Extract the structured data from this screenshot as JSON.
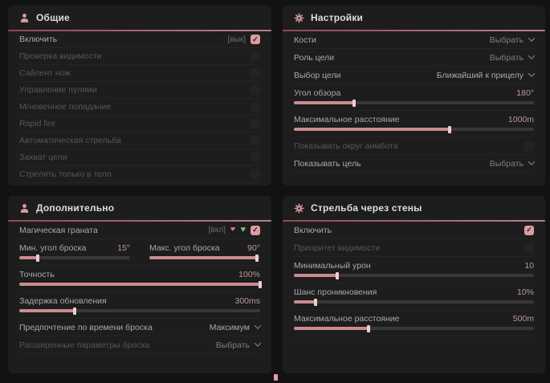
{
  "icons": {
    "check": "✓",
    "heart": "♥"
  },
  "colors": {
    "accent": "#d98f97",
    "panel": "#1d1d1d",
    "background": "#121212",
    "slider_fill": "#c98b91",
    "checkbox_on": "#e09aa2"
  },
  "panels": {
    "general": {
      "title": "Общие",
      "rows": [
        {
          "label": "Включить",
          "hotkey": "[вык]",
          "checked": true
        },
        {
          "label": "Проверка видимости",
          "checked": false
        },
        {
          "label": "Сайлент нож",
          "checked": false
        },
        {
          "label": "Управление пулями",
          "checked": false
        },
        {
          "label": "Мгновенное попадание",
          "checked": false
        },
        {
          "label": "Rapid fire",
          "checked": false
        },
        {
          "label": "Автоматическая стрельба",
          "checked": false
        },
        {
          "label": "Захват цели",
          "checked": false
        },
        {
          "label": "Стрелять только в тело",
          "checked": false
        }
      ]
    },
    "settings": {
      "title": "Настройки",
      "rows": [
        {
          "label": "Кости",
          "value": "Выбрать"
        },
        {
          "label": "Роль цели",
          "value": "Выбрать"
        },
        {
          "label": "Выбор цели",
          "value": "Ближайший к прицелу"
        },
        {
          "label": "Угол обзора",
          "value": "180°",
          "fill": 25
        },
        {
          "label": "Максимальное расстояние",
          "value": "1000m",
          "fill": 65
        },
        {
          "label": "Показывать округ аимбота",
          "checked": false
        },
        {
          "label": "Показывать цель",
          "value": "Выбрать"
        }
      ]
    },
    "additional": {
      "title": "Дополнительно",
      "rows": [
        {
          "label": "Магическая граната",
          "hotkey": "[вкл]",
          "checked": true
        },
        {
          "label": "Мин. угол броска",
          "value": "15°",
          "fill": 17
        },
        {
          "label": "Макс. угол броска",
          "value": "90°",
          "fill": 97
        },
        {
          "label": "Точность",
          "value": "100%",
          "fill": 100
        },
        {
          "label": "Задержка обновления",
          "value": "300ms",
          "fill": 23
        },
        {
          "label": "Предпочтение по времени броска",
          "value": "Максимум"
        },
        {
          "label": "Расширенные параметры броска",
          "value": "Выбрать"
        }
      ]
    },
    "walls": {
      "title": "Стрельба через стены",
      "rows": [
        {
          "label": "Включить",
          "checked": true
        },
        {
          "label": "Приоритет видимости",
          "checked": false
        },
        {
          "label": "Минимальный урон",
          "value": "10",
          "fill": 18
        },
        {
          "label": "Шанс проникновения",
          "value": "10%",
          "fill": 9
        },
        {
          "label": "Максимальное расстояние",
          "value": "500m",
          "fill": 31
        }
      ]
    }
  }
}
